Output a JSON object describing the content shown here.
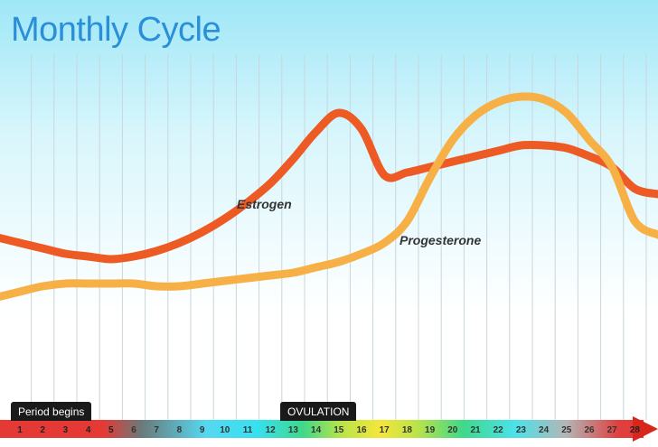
{
  "title": "Monthly Cycle",
  "chart_data": {
    "type": "line",
    "title": "Monthly Cycle",
    "x": [
      1,
      2,
      3,
      4,
      5,
      6,
      7,
      8,
      9,
      10,
      11,
      12,
      13,
      14,
      15,
      16,
      17,
      18,
      19,
      20,
      21,
      22,
      23,
      24,
      25,
      26,
      27,
      28
    ],
    "xlim": [
      1,
      28
    ],
    "ylim": [
      0,
      100
    ],
    "grid": "vertical lines per day",
    "series": [
      {
        "name": "Estrogen",
        "color": "#ee5a24",
        "values": [
          42,
          40,
          38,
          37,
          36,
          37,
          39,
          42,
          46,
          51,
          57,
          64,
          73,
          83,
          90,
          84,
          67,
          68,
          70,
          72,
          74,
          76,
          78,
          78,
          77,
          74,
          70,
          62
        ]
      },
      {
        "name": "Progesterone",
        "color": "#f7b046",
        "values": [
          24,
          26,
          27,
          27,
          27,
          27,
          26,
          26,
          27,
          28,
          29,
          30,
          31,
          33,
          35,
          38,
          42,
          50,
          66,
          80,
          89,
          94,
          96,
          95,
          90,
          80,
          70,
          50
        ]
      }
    ],
    "annotations": [
      {
        "text": "Period begins",
        "days": [
          1,
          5
        ]
      },
      {
        "text": "OVULATION",
        "days": [
          14,
          17
        ]
      }
    ]
  },
  "annotations": {
    "period": "Period begins",
    "ovulation": "OVULATION"
  },
  "days": [
    "1",
    "2",
    "3",
    "4",
    "5",
    "6",
    "7",
    "8",
    "9",
    "10",
    "11",
    "12",
    "13",
    "14",
    "15",
    "16",
    "17",
    "18",
    "19",
    "20",
    "21",
    "22",
    "23",
    "24",
    "25",
    "26",
    "27",
    "28"
  ],
  "colors": {
    "estrogen": "#ee5a24",
    "progesterone": "#f7b046",
    "title": "#2a8fd8"
  }
}
